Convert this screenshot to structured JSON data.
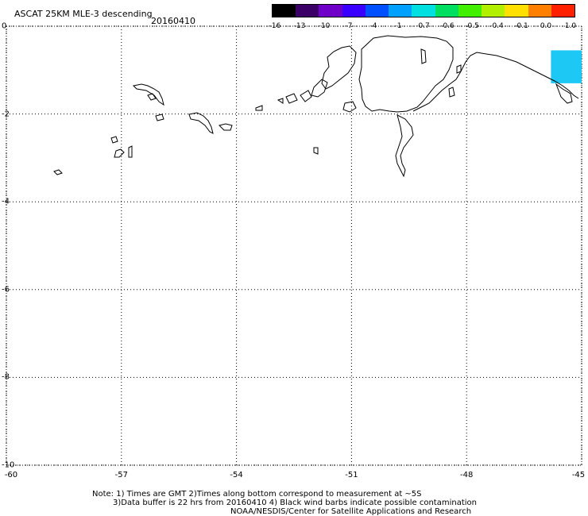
{
  "header": {
    "title": "ASCAT 25KM MLE-3 descending",
    "date": "20160410"
  },
  "colorbar": {
    "ticks": [
      "-16",
      "-13",
      "-10",
      "-7",
      "-4",
      "-1",
      "-0.7",
      "-0.6",
      "-0.5",
      "-0.4",
      "-0.1",
      "0.0",
      "1.0"
    ],
    "colors": [
      "#000000",
      "#3a0066",
      "#6e00c8",
      "#3a00ff",
      "#0050ff",
      "#00a0ff",
      "#00e0e0",
      "#00e060",
      "#40f000",
      "#b0f000",
      "#ffe000",
      "#ff8000",
      "#ff2000"
    ]
  },
  "map": {
    "lat_ticks": [
      "0",
      "-2",
      "-4",
      "-6",
      "-8",
      "-10"
    ],
    "lon_ticks": [
      "-60",
      "-57",
      "-54",
      "-51",
      "-48",
      "-45"
    ],
    "lon_range": [
      -60,
      -45
    ],
    "lat_range": [
      -10,
      0
    ],
    "data_patch": {
      "lon": [
        -45.8,
        -45.0
      ],
      "lat": [
        -0.55,
        -1.3
      ],
      "color": "#1ec8f5"
    }
  },
  "footer": {
    "line1": "Note: 1) Times are GMT 2)Times along bottom correspond to measurement at ~5S",
    "line2": "3)Data buffer is 22 hrs from 20160410 4) Black wind barbs indicate possible contamination",
    "line3": "NOAA/NESDIS/Center for Satellite Applications and Research"
  }
}
